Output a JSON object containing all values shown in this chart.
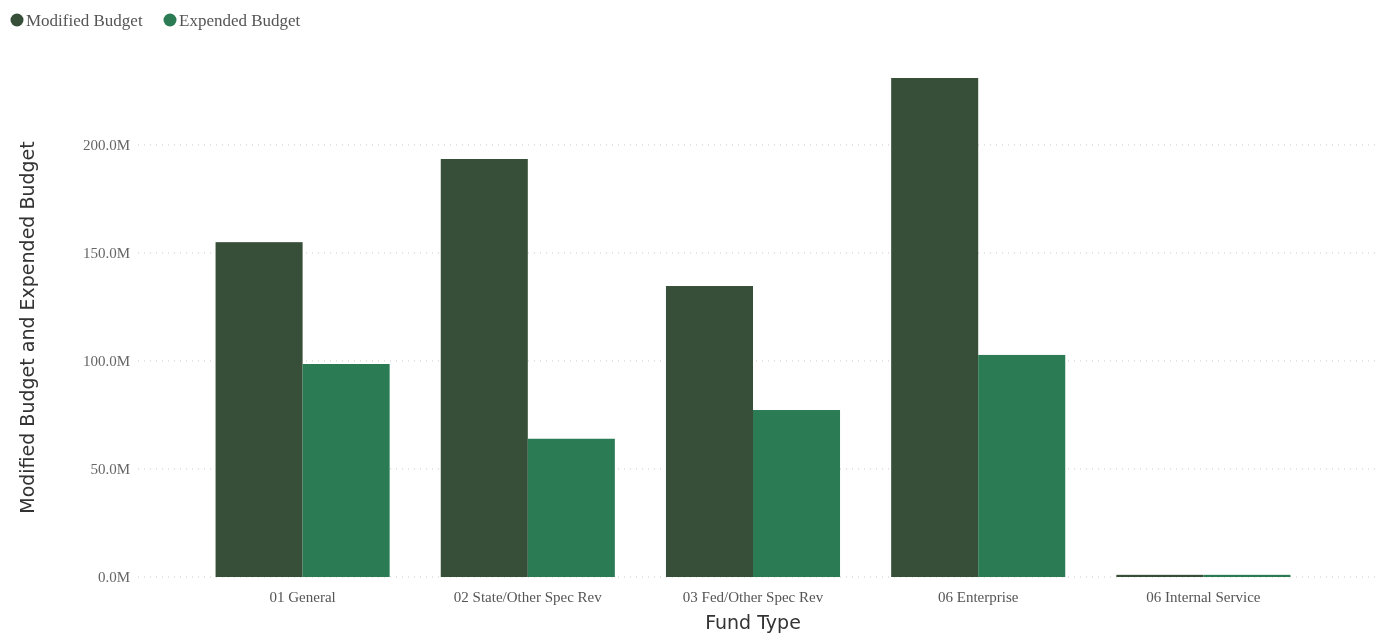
{
  "chart_data": {
    "type": "bar",
    "xlabel": "Fund Type",
    "ylabel": "Modified Budget and Expended Budget",
    "categories": [
      "01 General",
      "02 State/Other Spec Rev",
      "03 Fed/Other Spec Rev",
      "06 Enterprise",
      "06 Internal Service"
    ],
    "series": [
      {
        "name": "Modified Budget",
        "color": "#374f38",
        "values": [
          155,
          193.5,
          134.7,
          231,
          1
        ]
      },
      {
        "name": "Expended Budget",
        "color": "#2b7b54",
        "values": [
          98.6,
          64,
          77.3,
          102.8,
          1
        ]
      }
    ],
    "ylim": [
      0,
      231
    ],
    "yticks": [
      {
        "value": 0,
        "label": "0.0M"
      },
      {
        "value": 50,
        "label": "50.0M"
      },
      {
        "value": 100,
        "label": "100.0M"
      },
      {
        "value": 150,
        "label": "150.0M"
      },
      {
        "value": 200,
        "label": "200.0M"
      }
    ],
    "grid": "y",
    "legend": "top left"
  }
}
